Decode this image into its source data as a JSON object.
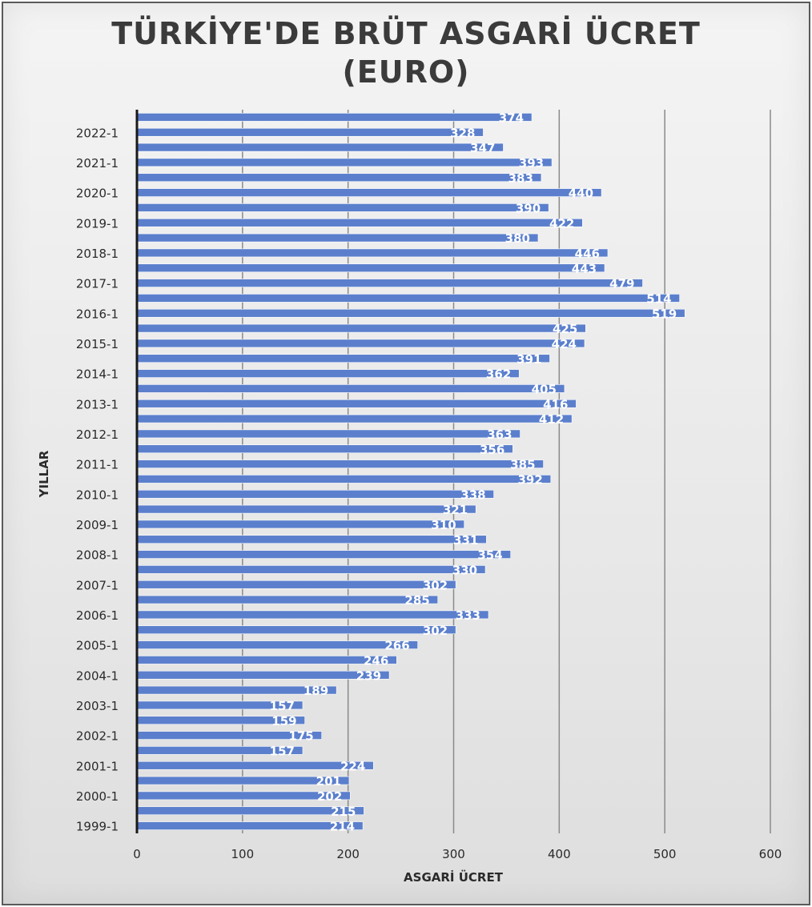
{
  "chart_data": {
    "type": "bar",
    "orientation": "horizontal",
    "title": "TÜRKİYE'DE BRÜT ASGARİ ÜCRET (EURO)",
    "title_lines": [
      "TÜRKİYE'DE BRÜT ASGARİ ÜCRET",
      "(EURO)"
    ],
    "xlabel": "ASGARİ ÜCRET",
    "ylabel": "YILLAR",
    "xlim": [
      0,
      600
    ],
    "xticks": [
      "0",
      "100",
      "200",
      "300",
      "400",
      "500",
      "600"
    ],
    "grid": true,
    "legend": "none",
    "colors": {
      "bar": "#5b7fcc",
      "grid": "#8a8a8a",
      "axis": "#1a1a1a"
    },
    "categories": [
      "1999-1",
      "",
      "2000-1",
      "",
      "2001-1",
      "",
      "2002-1",
      "",
      "2003-1",
      "",
      "2004-1",
      "",
      "2005-1",
      "",
      "2006-1",
      "",
      "2007-1",
      "",
      "2008-1",
      "",
      "2009-1",
      "",
      "2010-1",
      "",
      "2011-1",
      "",
      "2012-1",
      "",
      "2013-1",
      "",
      "2014-1",
      "",
      "2015-1",
      "",
      "2016-1",
      "",
      "2017-1",
      "",
      "2018-1",
      "",
      "2019-1",
      "",
      "2020-1",
      "",
      "2021-1",
      "",
      "2022-1",
      ""
    ],
    "values": [
      214,
      215,
      202,
      201,
      224,
      157,
      175,
      159,
      157,
      189,
      239,
      246,
      266,
      302,
      333,
      285,
      302,
      330,
      354,
      331,
      310,
      321,
      338,
      392,
      385,
      356,
      363,
      412,
      416,
      405,
      362,
      391,
      424,
      425,
      519,
      514,
      479,
      443,
      446,
      380,
      422,
      390,
      440,
      383,
      393,
      347,
      328,
      374
    ],
    "data_labels": [
      "214",
      "215",
      "202",
      "201",
      "224",
      "157",
      "175",
      "159",
      "157",
      "189",
      "239",
      "246",
      "266",
      "302",
      "333",
      "285",
      "302",
      "330",
      "354",
      "331",
      "310",
      "321",
      "338",
      "392",
      "385",
      "356",
      "363",
      "412",
      "416",
      "405",
      "362",
      "391",
      "424",
      "425",
      "519",
      "514",
      "479",
      "443",
      "446",
      "380",
      "422",
      "390",
      "440",
      "383",
      "393",
      "347",
      "328",
      "374"
    ]
  }
}
